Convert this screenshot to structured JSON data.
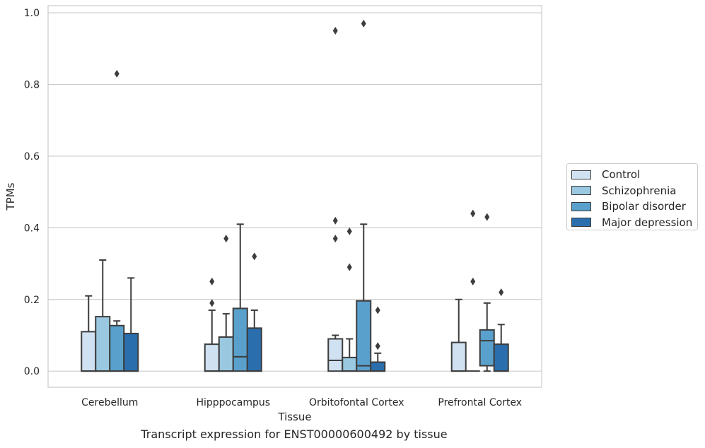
{
  "chart_data": {
    "type": "box",
    "title": "",
    "caption": "Transcript expression for ENST00000600492 by tissue",
    "xlabel": "Tissue",
    "ylabel": "TPMs",
    "ylim": [
      -0.045,
      1.02
    ],
    "yticks": [
      0.0,
      0.2,
      0.4,
      0.6,
      0.8,
      1.0
    ],
    "ytick_labels": [
      "0.0",
      "0.2",
      "0.4",
      "0.6",
      "0.8",
      "1.0"
    ],
    "grid": "horizontal",
    "legend_position": "right",
    "categories": [
      "Cerebellum",
      "Hipppocampus",
      "Orbitofontal Cortex",
      "Prefrontal Cortex"
    ],
    "series": [
      {
        "name": "Control",
        "color": "#d0e1f2",
        "boxes": [
          {
            "min": 0.0,
            "q1": 0.0,
            "median": 0.0,
            "q3": 0.11,
            "max": 0.21,
            "outliers": []
          },
          {
            "min": 0.0,
            "q1": 0.0,
            "median": 0.0,
            "q3": 0.075,
            "max": 0.17,
            "outliers": [
              0.19,
              0.25
            ]
          },
          {
            "min": 0.0,
            "q1": 0.0,
            "median": 0.03,
            "q3": 0.09,
            "max": 0.1,
            "outliers": [
              0.37,
              0.42,
              0.95
            ]
          },
          {
            "min": 0.0,
            "q1": 0.0,
            "median": 0.0,
            "q3": 0.08,
            "max": 0.2,
            "outliers": []
          }
        ]
      },
      {
        "name": "Schizophrenia",
        "color": "#9ac8e0",
        "boxes": [
          {
            "min": 0.0,
            "q1": 0.0,
            "median": 0.0,
            "q3": 0.152,
            "max": 0.31,
            "outliers": []
          },
          {
            "min": 0.0,
            "q1": 0.0,
            "median": 0.0,
            "q3": 0.095,
            "max": 0.16,
            "outliers": [
              0.37
            ]
          },
          {
            "min": 0.0,
            "q1": 0.0,
            "median": 0.0,
            "q3": 0.038,
            "max": 0.09,
            "outliers": [
              0.29,
              0.39
            ]
          },
          {
            "min": 0.0,
            "q1": 0.0,
            "median": 0.0,
            "q3": 0.0,
            "max": 0.0,
            "outliers": [
              0.25,
              0.44
            ]
          }
        ]
      },
      {
        "name": "Bipolar disorder",
        "color": "#5aa0cd",
        "boxes": [
          {
            "min": 0.0,
            "q1": 0.0,
            "median": 0.0,
            "q3": 0.127,
            "max": 0.14,
            "outliers": [
              0.83
            ]
          },
          {
            "min": 0.0,
            "q1": 0.0,
            "median": 0.04,
            "q3": 0.175,
            "max": 0.41,
            "outliers": []
          },
          {
            "min": 0.0,
            "q1": 0.0,
            "median": 0.015,
            "q3": 0.196,
            "max": 0.41,
            "outliers": [
              0.97
            ]
          },
          {
            "min": 0.0,
            "q1": 0.015,
            "median": 0.085,
            "q3": 0.115,
            "max": 0.19,
            "outliers": [
              0.43
            ]
          }
        ]
      },
      {
        "name": "Major depression",
        "color": "#2a6ead",
        "boxes": [
          {
            "min": 0.0,
            "q1": 0.0,
            "median": 0.0,
            "q3": 0.105,
            "max": 0.26,
            "outliers": []
          },
          {
            "min": 0.0,
            "q1": 0.0,
            "median": 0.0,
            "q3": 0.12,
            "max": 0.17,
            "outliers": [
              0.32
            ]
          },
          {
            "min": 0.0,
            "q1": 0.0,
            "median": 0.0,
            "q3": 0.025,
            "max": 0.05,
            "outliers": [
              0.07,
              0.17
            ]
          },
          {
            "min": 0.0,
            "q1": 0.0,
            "median": 0.0,
            "q3": 0.075,
            "max": 0.13,
            "outliers": [
              0.22
            ]
          }
        ]
      }
    ]
  }
}
